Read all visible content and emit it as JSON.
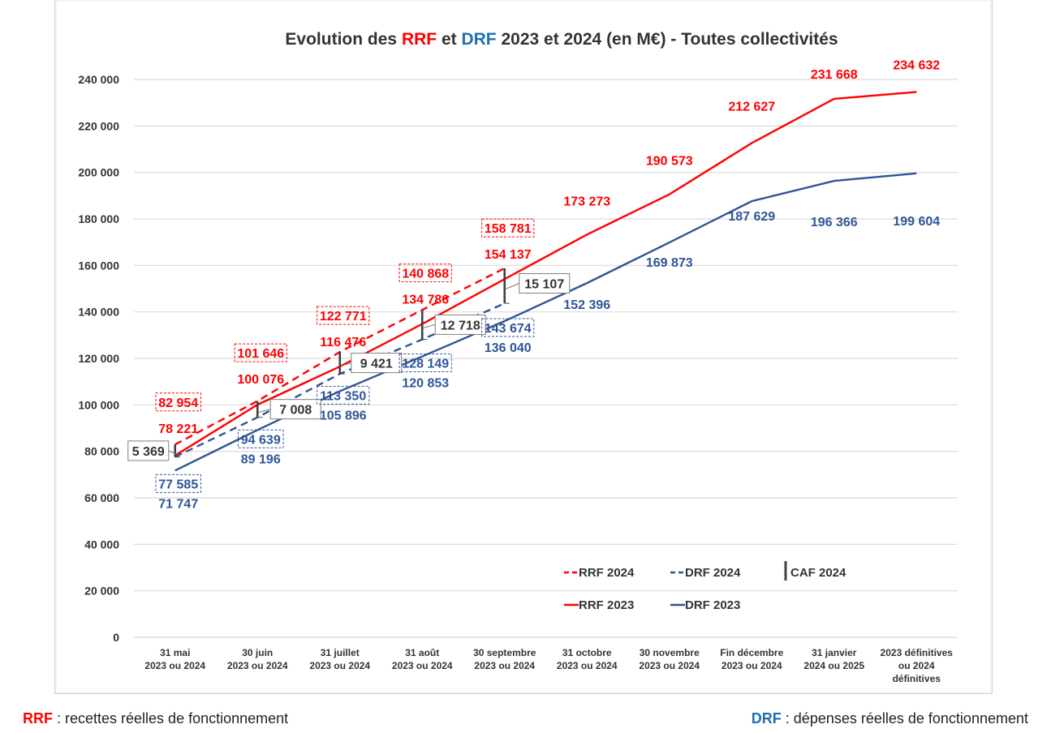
{
  "chart_data": {
    "type": "line",
    "title_parts": [
      {
        "text": "Evolution des ",
        "color": "#333333"
      },
      {
        "text": "RRF",
        "color": "#ff0000"
      },
      {
        "text": " et ",
        "color": "#333333"
      },
      {
        "text": "DRF",
        "color": "#1f6fb5"
      },
      {
        "text": " 2023 et 2024 (en M€) - Toutes collectivités",
        "color": "#333333"
      }
    ],
    "title": "Evolution des RRF et DRF 2023 et 2024 (en M€) - Toutes collectivités",
    "xlabel": "",
    "ylabel": "",
    "ylim": [
      0,
      240000
    ],
    "ytick_step": 20000,
    "yticks": [
      "0",
      "20 000",
      "40 000",
      "60 000",
      "80 000",
      "100 000",
      "120 000",
      "140 000",
      "160 000",
      "180 000",
      "200 000",
      "220 000",
      "240 000"
    ],
    "grid": true,
    "categories": [
      [
        "31 mai",
        "2023 ou 2024"
      ],
      [
        "30 juin",
        "2023 ou 2024"
      ],
      [
        "31 juillet",
        "2023 ou 2024"
      ],
      [
        "31 août",
        "2023 ou 2024"
      ],
      [
        "30 septembre",
        "2023 ou 2024"
      ],
      [
        "31 octobre",
        "2023 ou 2024"
      ],
      [
        "30 novembre",
        "2023 ou 2024"
      ],
      [
        "Fin décembre",
        "2023 ou 2024"
      ],
      [
        "31 janvier",
        "2024 ou 2025"
      ],
      [
        "2023 définitives",
        "ou 2024",
        "définitives"
      ]
    ],
    "series": [
      {
        "name": "RRF 2023",
        "color": "#ff0000",
        "dash": false,
        "values": [
          78221,
          100076,
          116476,
          134786,
          154137,
          173273,
          190573,
          212627,
          231668,
          234632
        ],
        "labels": [
          "78 221",
          "100 076",
          "116 476",
          "134 786",
          "154 137",
          "173 273",
          "190 573",
          "212 627",
          "231 668",
          "234 632"
        ]
      },
      {
        "name": "DRF 2023",
        "color": "#2f5597",
        "dash": false,
        "values": [
          71747,
          89196,
          105896,
          120853,
          136040,
          152396,
          169873,
          187629,
          196366,
          199604
        ],
        "labels": [
          "71 747",
          "89 196",
          "105 896",
          "120 853",
          "136 040",
          "152 396",
          "169 873",
          "187 629",
          "196 366",
          "199 604"
        ]
      },
      {
        "name": "RRF 2024",
        "color": "#ff0000",
        "dash": true,
        "values": [
          82954,
          101646,
          122771,
          140868,
          158781
        ],
        "labels": [
          "82 954",
          "101 646",
          "122 771",
          "140 868",
          "158 781"
        ]
      },
      {
        "name": "DRF 2024",
        "color": "#2f5597",
        "dash": true,
        "values": [
          77585,
          94639,
          113350,
          128149,
          143674
        ],
        "labels": [
          "77 585",
          "94 639",
          "113 350",
          "128 149",
          "143 674"
        ]
      }
    ],
    "caf_2024": {
      "name": "CAF 2024",
      "color": "#404040",
      "values": [
        5369,
        7008,
        9421,
        12718,
        15107
      ],
      "labels": [
        "5 369",
        "7 008",
        "9 421",
        "12 718",
        "15 107"
      ]
    },
    "legend": {
      "placement": "bottom-right",
      "items": [
        {
          "label": "RRF 2024",
          "color": "#ff0000",
          "style": "dashed"
        },
        {
          "label": "DRF 2024",
          "color": "#2f5597",
          "style": "dashed"
        },
        {
          "label": "CAF 2024",
          "color": "#404040",
          "style": "bar"
        },
        {
          "label": "RRF 2023",
          "color": "#ff0000",
          "style": "solid"
        },
        {
          "label": "DRF 2023",
          "color": "#2f5597",
          "style": "solid"
        }
      ]
    }
  },
  "footer": {
    "left_abbr": "RRF",
    "left_text": " : recettes réelles de fonctionnement",
    "left_color": "#ff0000",
    "right_abbr": "DRF",
    "right_text": " : dépenses réelles de fonctionnement",
    "right_color": "#1f6fb5"
  }
}
